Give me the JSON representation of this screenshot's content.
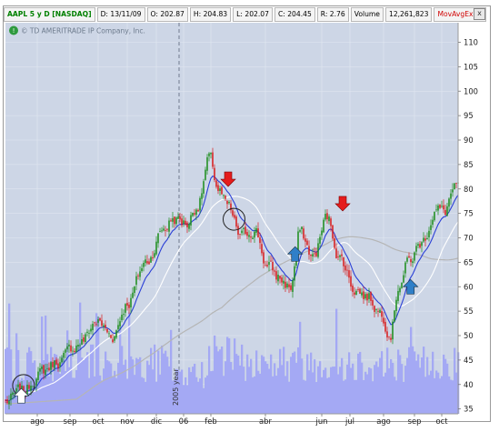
{
  "header": {
    "symbol": "AAPL 5 y D [NASDAQ]",
    "date": "D: 13/11/09",
    "open": "O: 202.87",
    "high": "H: 204.83",
    "low": "L: 202.07",
    "close": "C: 204.45",
    "range": "R: 2.76",
    "volume_label": "Volume",
    "volume_value": "12,261,823",
    "study": "MovAvgExpone...",
    "close_button": "x"
  },
  "watermark": "© TD AMERITRADE IP Company, Inc.",
  "colors": {
    "plot_bg": "#cdd6e6",
    "volume": "#a4a9f4",
    "bull": "#1a8c1a",
    "bear": "#d81a1a",
    "ema_fast": "#2a3fd6",
    "sma_mid": "#ffffff",
    "sma_slow": "#b5b5b5",
    "arrow_down": "#e51c1c",
    "arrow_up": "#2f7fc8"
  },
  "chart_data": {
    "type": "candlestick",
    "title": "AAPL 5 y D [NASDAQ]",
    "ylim": [
      34,
      114
    ],
    "y_ticks": [
      35,
      40,
      45,
      50,
      55,
      60,
      65,
      70,
      75,
      80,
      85,
      90,
      95,
      100,
      105,
      110
    ],
    "x_ticks": [
      "ago",
      "sep",
      "oct",
      "nov",
      "dic",
      "06",
      "feb",
      "abr",
      "jun",
      "jul",
      "ago",
      "sep",
      "oct"
    ],
    "year_marker": "2005 year",
    "price_anchors": [
      {
        "t": 0,
        "p": 36.5
      },
      {
        "t": 0.04,
        "p": 38.5
      },
      {
        "t": 0.07,
        "p": 42
      },
      {
        "t": 0.12,
        "p": 45
      },
      {
        "t": 0.17,
        "p": 49
      },
      {
        "t": 0.2,
        "p": 53
      },
      {
        "t": 0.235,
        "p": 50
      },
      {
        "t": 0.27,
        "p": 57
      },
      {
        "t": 0.31,
        "p": 65
      },
      {
        "t": 0.35,
        "p": 72
      },
      {
        "t": 0.37,
        "p": 74
      },
      {
        "t": 0.4,
        "p": 73
      },
      {
        "t": 0.425,
        "p": 77
      },
      {
        "t": 0.45,
        "p": 86
      },
      {
        "t": 0.47,
        "p": 80
      },
      {
        "t": 0.49,
        "p": 76
      },
      {
        "t": 0.52,
        "p": 70
      },
      {
        "t": 0.55,
        "p": 72
      },
      {
        "t": 0.58,
        "p": 64
      },
      {
        "t": 0.6,
        "p": 62
      },
      {
        "t": 0.63,
        "p": 60
      },
      {
        "t": 0.65,
        "p": 71
      },
      {
        "t": 0.68,
        "p": 66
      },
      {
        "t": 0.71,
        "p": 74
      },
      {
        "t": 0.74,
        "p": 66
      },
      {
        "t": 0.77,
        "p": 60
      },
      {
        "t": 0.8,
        "p": 58
      },
      {
        "t": 0.83,
        "p": 55
      },
      {
        "t": 0.85,
        "p": 51
      },
      {
        "t": 0.87,
        "p": 61
      },
      {
        "t": 0.89,
        "p": 65
      },
      {
        "t": 0.92,
        "p": 69
      },
      {
        "t": 0.95,
        "p": 76
      },
      {
        "t": 0.97,
        "p": 75
      },
      {
        "t": 0.985,
        "p": 79
      },
      {
        "t": 1.0,
        "p": 80
      }
    ],
    "volume_range": [
      35,
      57
    ],
    "signals": [
      {
        "type": "buy",
        "t": 0.035,
        "p": 36.2
      },
      {
        "type": "sell",
        "t": 0.492,
        "p": 80.5
      },
      {
        "type": "buy",
        "t": 0.64,
        "p": 65.2
      },
      {
        "type": "sell",
        "t": 0.745,
        "p": 75.5
      },
      {
        "type": "buy",
        "t": 0.895,
        "p": 58.5
      }
    ],
    "circles": [
      {
        "t": 0.04,
        "p": 39.8
      },
      {
        "t": 0.505,
        "p": 73.8
      }
    ]
  }
}
